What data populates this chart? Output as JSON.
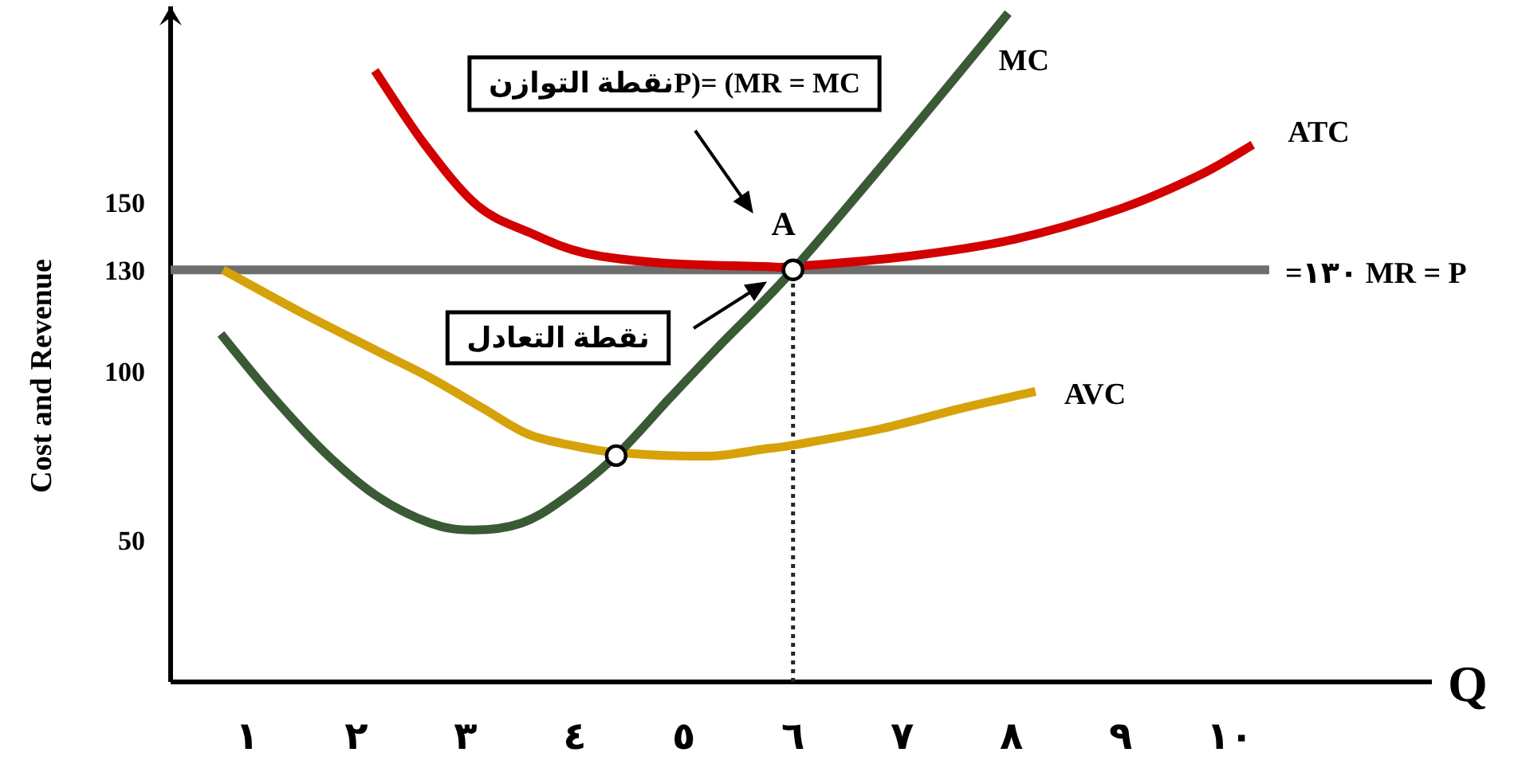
{
  "chart_data": {
    "type": "line",
    "xlabel": "Q",
    "ylabel": "Cost and Revenue",
    "xlim": [
      0.3,
      11.85
    ],
    "ylim": [
      8,
      208
    ],
    "xticks": [
      {
        "value": 1,
        "label": "١"
      },
      {
        "value": 2,
        "label": "٢"
      },
      {
        "value": 3,
        "label": "٣"
      },
      {
        "value": 4,
        "label": "٤"
      },
      {
        "value": 5,
        "label": "٥"
      },
      {
        "value": 6,
        "label": "٦"
      },
      {
        "value": 7,
        "label": "٧"
      },
      {
        "value": 8,
        "label": "٨"
      },
      {
        "value": 9,
        "label": "٩"
      },
      {
        "value": 10,
        "label": "١٠"
      }
    ],
    "yticks": [
      50,
      100,
      130,
      150
    ],
    "grid": false,
    "legend": false,
    "marker": "none",
    "line_style": "solid",
    "series": [
      {
        "name": "=١٣٠ MR = P",
        "color": "#6e6e6e",
        "x": [
          0.3,
          10.36
        ],
        "values": [
          130,
          130
        ]
      },
      {
        "color": "#262626",
        "x": [
          6,
          6
        ],
        "values": [
          8,
          130
        ],
        "line_style": "dotted"
      },
      {
        "name": "ATC",
        "color": "#d20000",
        "x": [
          2.17,
          2.63,
          3.11,
          3.59,
          4.09,
          4.81,
          5.74,
          6,
          7.05,
          8.02,
          8.99,
          9.72,
          10.21
        ],
        "values": [
          189,
          167,
          149,
          141,
          135,
          132,
          131,
          131,
          134,
          139,
          148,
          158,
          167
        ]
      },
      {
        "name": "AVC",
        "color": "#d6a20a",
        "x": [
          0.78,
          1.46,
          2.19,
          2.68,
          3.16,
          3.6,
          4.14,
          4.38,
          4.87,
          5.31,
          5.74,
          5.98,
          6.81,
          7.54,
          8.22
        ],
        "values": [
          130,
          118,
          106,
          98,
          89,
          81,
          77,
          76,
          75,
          75,
          77,
          78,
          83,
          89,
          94
        ]
      },
      {
        "name": "MC",
        "color": "#3a5a36",
        "x": [
          0.76,
          1.22,
          1.71,
          2.19,
          2.68,
          3.07,
          3.51,
          3.89,
          4.38,
          4.87,
          5.31,
          6,
          7,
          7.97
        ],
        "values": [
          111,
          93,
          76,
          63,
          55,
          53,
          55,
          62,
          75,
          92,
          107,
          130,
          168,
          206
        ]
      },
      {
        "type": "scatter",
        "color": "#ffffff",
        "x": [
          4.38,
          6
        ],
        "values": [
          75,
          130
        ],
        "marker": "circle",
        "value_labels": [
          null,
          "A"
        ]
      }
    ],
    "annotations": [
      "نقطة التوازنP)=  (MR = MC",
      "نقطة التعادل"
    ]
  }
}
